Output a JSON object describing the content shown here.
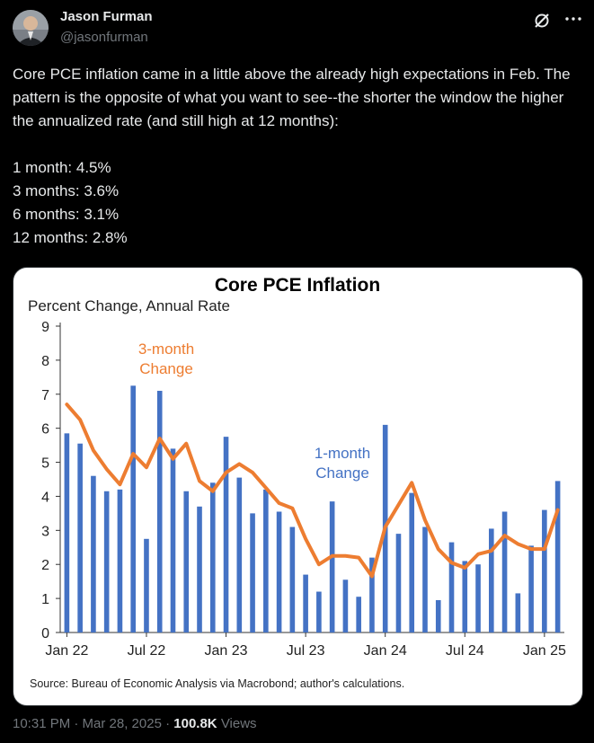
{
  "tweet": {
    "author_name": "Jason Furman",
    "author_handle": "@jasonfurman",
    "text_lines": [
      "Core PCE inflation came in a little above the already high expectations in Feb. The pattern is the opposite of what you want to see--the shorter the window the higher the annualized rate (and still high at 12 months):",
      "",
      "1 month: 4.5%",
      "3 months: 3.6%",
      "6 months: 3.1%",
      "12 months: 2.8%"
    ],
    "timestamp": "10:31 PM · Mar 28, 2025 ·",
    "views_count": "100.8K",
    "views_label": "Views",
    "icons": {
      "grok": "grok-icon",
      "more": "more-icon"
    }
  },
  "chart_data": {
    "type": "bar",
    "title": "Core PCE Inflation",
    "ylabel": "Percent Change, Annual Rate",
    "source": "Source: Bureau of Economic Analysis via Macrobond; author's calculations.",
    "ylim": [
      0,
      9
    ],
    "yticks": [
      "0",
      "1",
      "2",
      "3",
      "4",
      "5",
      "6",
      "7",
      "8",
      "9"
    ],
    "xtick_labels": [
      {
        "label": "Jan 22",
        "index": 0
      },
      {
        "label": "Jul 22",
        "index": 6
      },
      {
        "label": "Jan 23",
        "index": 12
      },
      {
        "label": "Jul 23",
        "index": 18
      },
      {
        "label": "Jan 24",
        "index": 24
      },
      {
        "label": "Jul 24",
        "index": 30
      },
      {
        "label": "Jan 25",
        "index": 36
      }
    ],
    "series": [
      {
        "name": "1-month Change",
        "type": "bar",
        "color": "#4472c4",
        "values": [
          5.85,
          5.55,
          4.6,
          4.15,
          4.2,
          7.25,
          2.75,
          7.1,
          5.4,
          4.15,
          3.7,
          4.4,
          5.75,
          4.55,
          3.5,
          4.2,
          3.55,
          3.1,
          1.7,
          1.2,
          3.85,
          1.55,
          1.05,
          2.2,
          6.1,
          2.9,
          4.1,
          3.1,
          0.95,
          2.65,
          2.1,
          2.0,
          3.05,
          3.55,
          1.15,
          2.55,
          3.6,
          4.45
        ]
      },
      {
        "name": "3-month Change",
        "type": "line",
        "color": "#ed7d31",
        "values": [
          6.7,
          6.25,
          5.35,
          4.8,
          4.35,
          5.25,
          4.85,
          5.7,
          5.1,
          5.55,
          4.45,
          4.15,
          4.7,
          4.95,
          4.7,
          4.25,
          3.8,
          3.65,
          2.75,
          2.0,
          2.25,
          2.25,
          2.2,
          1.65,
          3.1,
          3.75,
          4.4,
          3.3,
          2.45,
          2.05,
          1.9,
          2.3,
          2.4,
          2.85,
          2.6,
          2.45,
          2.45,
          3.6
        ]
      }
    ],
    "annotations": [
      {
        "text": "3-month Change",
        "series": "3-month Change"
      },
      {
        "text": "1-month Change",
        "series": "1-month Change"
      }
    ]
  }
}
